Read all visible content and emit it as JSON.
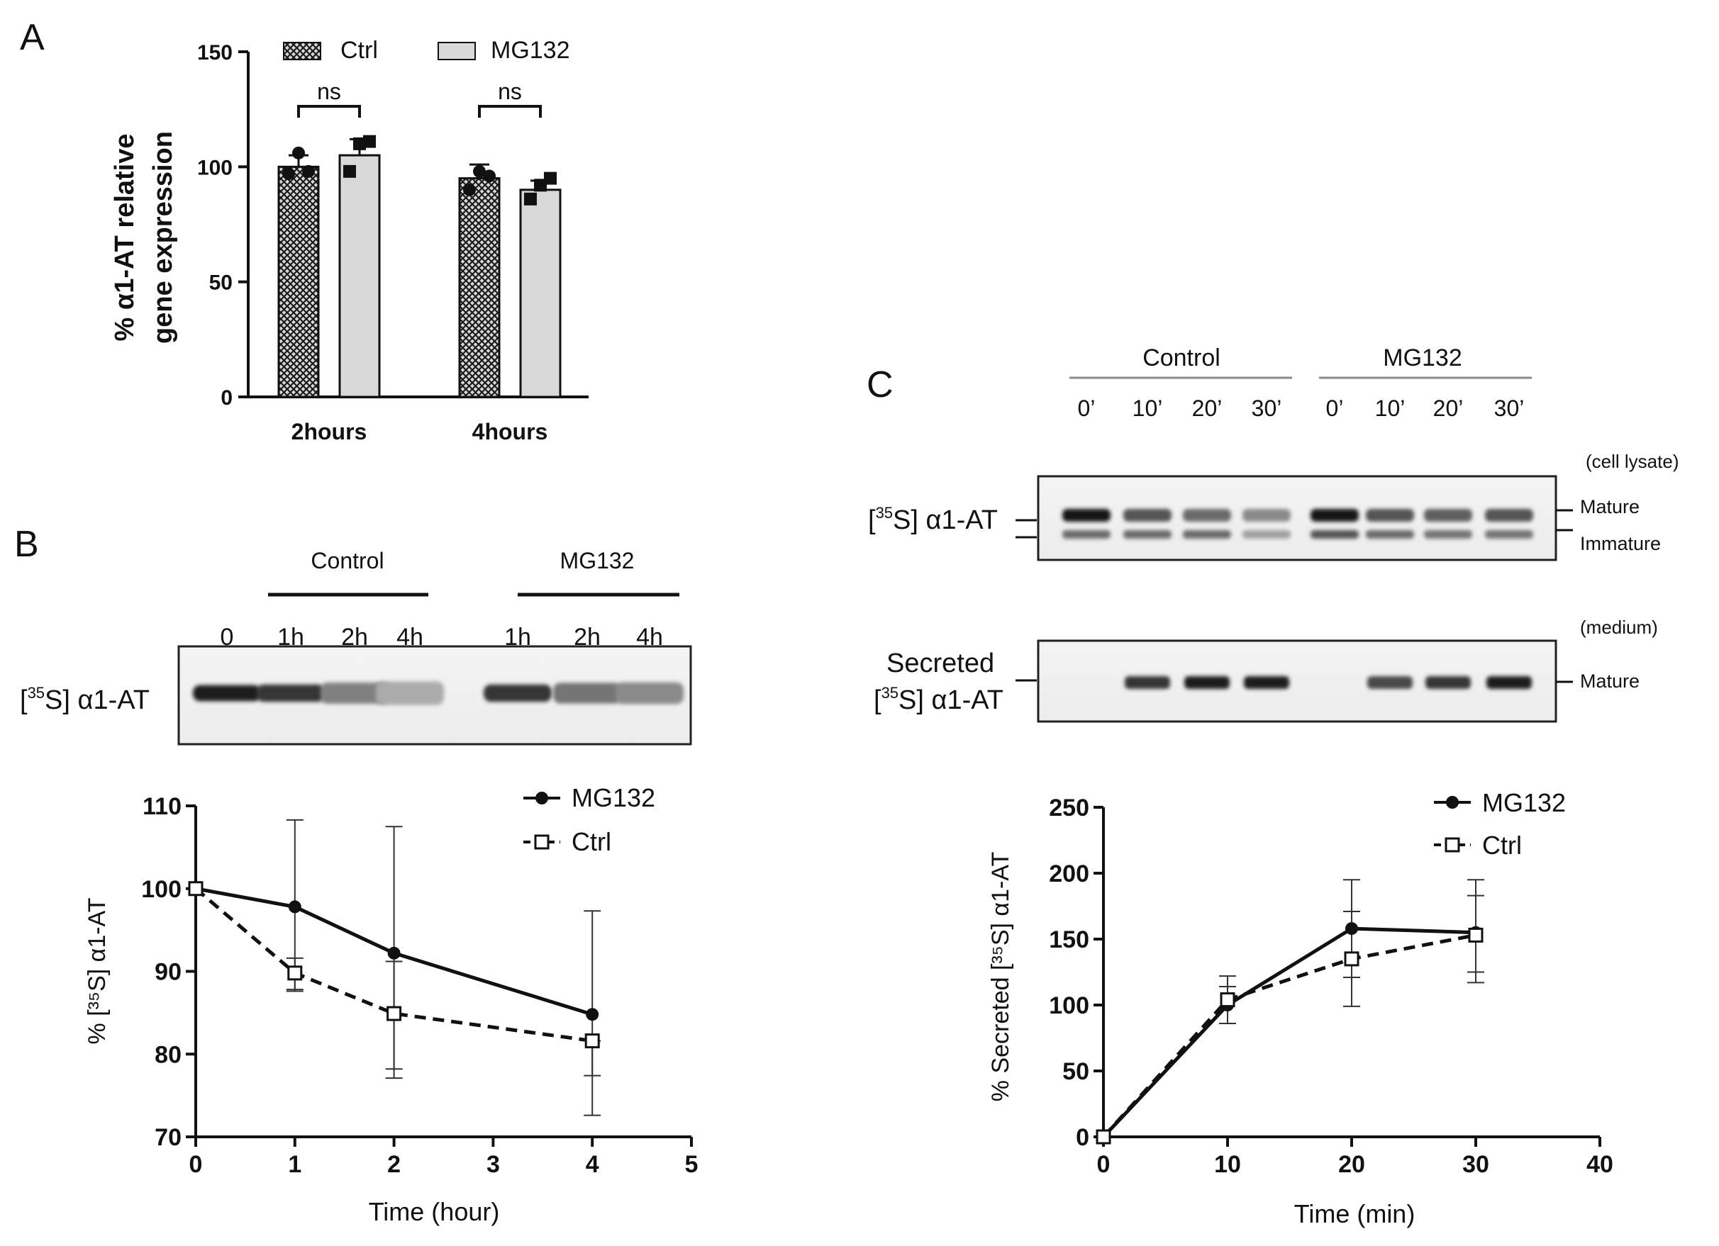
{
  "panels": {
    "a": "A",
    "b": "B",
    "c": "C"
  },
  "colors": {
    "ink": "#111111",
    "band": "#141414",
    "bar_fill": "#d9d9d9",
    "grid_line": "#a0a0a0"
  },
  "chart_data": [
    {
      "id": "panel-a",
      "type": "bar",
      "title": "",
      "ylabel_lines": [
        "% α1-AT relative",
        "gene expression"
      ],
      "xlabel": "",
      "categories": [
        "2hours",
        "4hours"
      ],
      "ylim": [
        0,
        150
      ],
      "yticks": [
        0,
        50,
        100,
        150
      ],
      "series": [
        {
          "name": "Ctrl",
          "pattern": "crosshatch",
          "values": [
            100,
            95
          ],
          "errors": [
            5,
            6
          ],
          "points": [
            [
              97,
              106,
              98
            ],
            [
              90,
              98,
              96
            ]
          ]
        },
        {
          "name": "MG132",
          "pattern": "light",
          "values": [
            105,
            90
          ],
          "errors": [
            7,
            4
          ],
          "points": [
            [
              98,
              110,
              111
            ],
            [
              86,
              92,
              95
            ]
          ]
        }
      ],
      "significance": [
        {
          "category": "2hours",
          "label": "ns"
        },
        {
          "category": "4hours",
          "label": "ns"
        }
      ],
      "legend_position": "top"
    },
    {
      "id": "panel-b",
      "type": "line",
      "xlabel": "Time (hour)",
      "ylabel": "% [³⁵S] α1-AT",
      "xlim": [
        0,
        5
      ],
      "ylim": [
        70,
        110
      ],
      "xticks": [
        0,
        1,
        2,
        3,
        4,
        5
      ],
      "yticks": [
        70,
        80,
        90,
        100,
        110
      ],
      "series": [
        {
          "name": "MG132",
          "marker": "filled-circle",
          "line": "solid",
          "x": [
            0,
            1,
            2,
            4
          ],
          "y": [
            100,
            97.8,
            92.2,
            84.8
          ],
          "err_up": [
            0,
            10.5,
            15.3,
            12.5
          ],
          "err_down": [
            0,
            10,
            14,
            7.4
          ]
        },
        {
          "name": "Ctrl",
          "marker": "open-square",
          "line": "dashed",
          "x": [
            0,
            1,
            2,
            4
          ],
          "y": [
            100,
            89.8,
            84.9,
            81.6
          ],
          "err_up": [
            0,
            1.8,
            6.3,
            0
          ],
          "err_down": [
            0,
            2.2,
            7.8,
            9
          ]
        }
      ],
      "legend_position": "top-right"
    },
    {
      "id": "panel-c",
      "type": "line",
      "xlabel": "Time (min)",
      "ylabel": "% Secreted [³⁵S] α1-AT",
      "xlim": [
        0,
        40
      ],
      "ylim": [
        0,
        250
      ],
      "xticks": [
        0,
        10,
        20,
        30,
        40
      ],
      "yticks": [
        0,
        50,
        100,
        150,
        200,
        250
      ],
      "series": [
        {
          "name": "MG132",
          "marker": "filled-circle",
          "line": "solid",
          "x": [
            0,
            10,
            20,
            30
          ],
          "y": [
            0,
            100,
            158,
            155
          ],
          "err_up": [
            0,
            14,
            37,
            40
          ],
          "err_down": [
            0,
            14,
            37,
            30
          ]
        },
        {
          "name": "Ctrl",
          "marker": "open-square",
          "line": "dashed",
          "x": [
            0,
            10,
            20,
            30
          ],
          "y": [
            0,
            104,
            135,
            153
          ],
          "err_up": [
            0,
            18,
            36,
            30
          ],
          "err_down": [
            0,
            18,
            36,
            36
          ]
        }
      ],
      "legend_position": "top-left"
    }
  ],
  "gel_b": {
    "group_labels": [
      "Control",
      "MG132"
    ],
    "lane_labels": [
      "0",
      "1h",
      "2h",
      "4h",
      "1h",
      "2h",
      "4h"
    ],
    "row_label_prefix": "[",
    "row_label_sup": "35",
    "row_label_suffix": "S] α1-AT",
    "lane_intensity": [
      0.95,
      0.85,
      0.5,
      0.3,
      0.85,
      0.55,
      0.45
    ]
  },
  "gel_c": {
    "group_labels": [
      "Control",
      "MG132"
    ],
    "lane_labels": [
      "0’",
      "10’",
      "20’",
      "30’",
      "0’",
      "10’",
      "20’",
      "30’"
    ],
    "lysate": {
      "condition": "(cell lysate)",
      "row_label_prefix": "[",
      "row_label_sup": "35",
      "row_label_suffix": "S] α1-AT",
      "band_labels": [
        "Mature",
        "Immature"
      ],
      "mature_intensity": [
        0.98,
        0.7,
        0.6,
        0.45,
        1.0,
        0.7,
        0.65,
        0.7
      ],
      "immature_intensity": [
        0.6,
        0.6,
        0.6,
        0.35,
        0.7,
        0.6,
        0.55,
        0.55
      ]
    },
    "medium": {
      "condition": "(medium)",
      "row_label_line1": "Secreted",
      "row_label_prefix": "[",
      "row_label_sup": "35",
      "row_label_suffix": "S] α1-AT",
      "band_labels": [
        "Mature"
      ],
      "mature_intensity": [
        0,
        0.85,
        0.95,
        0.95,
        0,
        0.75,
        0.85,
        0.95
      ]
    }
  }
}
